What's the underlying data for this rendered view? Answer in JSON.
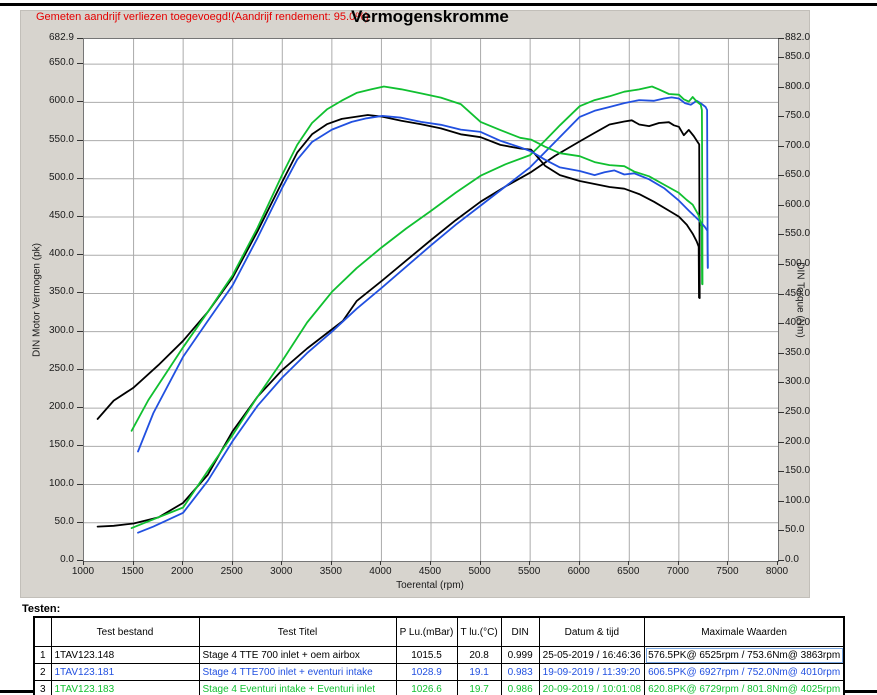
{
  "annotation": "Gemeten aandrijf verliezen toegevoegd!(Aandrijf rendement: 95.0%)",
  "title": "Vermogenskromme",
  "testen_label": "Testen:",
  "chart_data": {
    "type": "line",
    "title": "Vermogenskromme",
    "xlabel": "Toerental (rpm)",
    "ylabel_left": "DIN Motor Vermogen (pk)",
    "ylabel_right": "DIN Torque (Nm)",
    "x_range": [
      1000,
      8000
    ],
    "y_left_range": [
      0,
      682.9
    ],
    "y_right_range": [
      0,
      882.0
    ],
    "grid": true,
    "legend_position": "none",
    "x_tick_labels": [
      "1000",
      "1500",
      "2000",
      "2500",
      "3000",
      "3500",
      "4000",
      "4500",
      "5000",
      "5500",
      "6000",
      "6500",
      "7000",
      "7500",
      "8000"
    ],
    "y_left_tick_labels": [
      "682.9",
      "650.0",
      "600.0",
      "550.0",
      "500.0",
      "450.0",
      "400.0",
      "350.0",
      "300.0",
      "250.0",
      "200.0",
      "150.0",
      "100.0",
      "50.0",
      "0.0"
    ],
    "y_right_tick_labels": [
      "882.0",
      "850.0",
      "800.0",
      "750.0",
      "700.0",
      "650.0",
      "600.0",
      "550.0",
      "500.0",
      "450.0",
      "400.0",
      "350.0",
      "300.0",
      "250.0",
      "200.0",
      "150.0",
      "100.0",
      "50.0",
      "0.0"
    ],
    "series": [
      {
        "name": "1TAV123.148 vermogen (pk)",
        "color": "#000000",
        "axis": "left-pk",
        "points": [
          [
            1137,
            45
          ],
          [
            1300,
            46
          ],
          [
            1500,
            49
          ],
          [
            1750,
            57
          ],
          [
            2000,
            76
          ],
          [
            2250,
            113
          ],
          [
            2500,
            170
          ],
          [
            2750,
            215
          ],
          [
            3000,
            250
          ],
          [
            3250,
            278
          ],
          [
            3500,
            303
          ],
          [
            3610,
            314
          ],
          [
            3750,
            340
          ],
          [
            4000,
            366
          ],
          [
            4250,
            393
          ],
          [
            4500,
            420
          ],
          [
            4750,
            446
          ],
          [
            5000,
            470
          ],
          [
            5250,
            490
          ],
          [
            5500,
            508
          ],
          [
            5750,
            530
          ],
          [
            6000,
            549
          ],
          [
            6150,
            560
          ],
          [
            6300,
            571
          ],
          [
            6450,
            575
          ],
          [
            6525,
            576.5
          ],
          [
            6600,
            571
          ],
          [
            6700,
            569
          ],
          [
            6800,
            573
          ],
          [
            6900,
            574
          ],
          [
            6950,
            570
          ],
          [
            7000,
            568
          ],
          [
            7050,
            557
          ],
          [
            7100,
            564
          ],
          [
            7150,
            556
          ],
          [
            7190,
            548
          ],
          [
            7205,
            545
          ],
          [
            7208,
            430
          ],
          [
            7210,
            344
          ]
        ]
      },
      {
        "name": "1TAV123.181 vermogen (pk)",
        "color": "#2150e0",
        "axis": "left-pk",
        "points": [
          [
            1545,
            37
          ],
          [
            1700,
            45
          ],
          [
            2000,
            63
          ],
          [
            2250,
            105
          ],
          [
            2500,
            157
          ],
          [
            2750,
            203
          ],
          [
            3000,
            240
          ],
          [
            3250,
            272
          ],
          [
            3500,
            300
          ],
          [
            3750,
            330
          ],
          [
            4000,
            357
          ],
          [
            4250,
            385
          ],
          [
            4500,
            413
          ],
          [
            4750,
            440
          ],
          [
            5000,
            465
          ],
          [
            5250,
            490
          ],
          [
            5500,
            515
          ],
          [
            5750,
            548
          ],
          [
            6000,
            581
          ],
          [
            6150,
            589
          ],
          [
            6300,
            594
          ],
          [
            6450,
            599
          ],
          [
            6600,
            603
          ],
          [
            6750,
            602
          ],
          [
            6850,
            605
          ],
          [
            6927,
            606.5
          ],
          [
            7000,
            605
          ],
          [
            7060,
            599
          ],
          [
            7120,
            597
          ],
          [
            7180,
            602
          ],
          [
            7230,
            598
          ],
          [
            7270,
            594
          ],
          [
            7285,
            590
          ],
          [
            7288,
            480
          ],
          [
            7292,
            384
          ]
        ]
      },
      {
        "name": "1TAV123.183 vermogen (pk)",
        "color": "#10c030",
        "axis": "left-pk",
        "points": [
          [
            1480,
            43
          ],
          [
            1650,
            52
          ],
          [
            2000,
            70
          ],
          [
            2250,
            118
          ],
          [
            2500,
            165
          ],
          [
            2750,
            215
          ],
          [
            3000,
            262
          ],
          [
            3250,
            312
          ],
          [
            3500,
            352
          ],
          [
            3750,
            383
          ],
          [
            4000,
            410
          ],
          [
            4250,
            435
          ],
          [
            4500,
            458
          ],
          [
            4750,
            482
          ],
          [
            5000,
            504
          ],
          [
            5250,
            519
          ],
          [
            5500,
            531
          ],
          [
            5650,
            550
          ],
          [
            5800,
            570
          ],
          [
            6000,
            595
          ],
          [
            6150,
            603
          ],
          [
            6300,
            608
          ],
          [
            6450,
            614
          ],
          [
            6600,
            617
          ],
          [
            6729,
            620.8
          ],
          [
            6800,
            617
          ],
          [
            6900,
            611
          ],
          [
            7000,
            610
          ],
          [
            7050,
            604
          ],
          [
            7100,
            601
          ],
          [
            7140,
            607
          ],
          [
            7180,
            601
          ],
          [
            7220,
            597
          ],
          [
            7232,
            590
          ],
          [
            7236,
            470
          ],
          [
            7238,
            362
          ]
        ]
      },
      {
        "name": "1TAV123.148 koppel (Nm)",
        "color": "#000000",
        "axis": "right-nm",
        "points": [
          [
            1137,
            240
          ],
          [
            1300,
            271
          ],
          [
            1500,
            293
          ],
          [
            1750,
            331
          ],
          [
            2000,
            372
          ],
          [
            2250,
            421
          ],
          [
            2500,
            479
          ],
          [
            2750,
            557
          ],
          [
            3000,
            641
          ],
          [
            3150,
            690
          ],
          [
            3300,
            721
          ],
          [
            3450,
            738
          ],
          [
            3600,
            747
          ],
          [
            3863,
            753.6
          ],
          [
            4000,
            751
          ],
          [
            4200,
            744
          ],
          [
            4400,
            738
          ],
          [
            4600,
            731
          ],
          [
            4800,
            721
          ],
          [
            5000,
            716
          ],
          [
            5200,
            703
          ],
          [
            5400,
            697
          ],
          [
            5510,
            695
          ],
          [
            5650,
            668
          ],
          [
            5800,
            652
          ],
          [
            6000,
            642
          ],
          [
            6150,
            637
          ],
          [
            6300,
            632
          ],
          [
            6450,
            629
          ],
          [
            6600,
            620
          ],
          [
            6750,
            607
          ],
          [
            6900,
            592
          ],
          [
            7000,
            582
          ],
          [
            7080,
            568
          ],
          [
            7140,
            553
          ],
          [
            7180,
            540
          ],
          [
            7200,
            531
          ],
          [
            7203,
            445
          ]
        ]
      },
      {
        "name": "1TAV123.181 koppel (Nm)",
        "color": "#2150e0",
        "axis": "right-nm",
        "points": [
          [
            1545,
            185
          ],
          [
            1700,
            250
          ],
          [
            2000,
            345
          ],
          [
            2250,
            406
          ],
          [
            2500,
            466
          ],
          [
            2750,
            546
          ],
          [
            3000,
            631
          ],
          [
            3150,
            678
          ],
          [
            3300,
            708
          ],
          [
            3500,
            729
          ],
          [
            3700,
            742
          ],
          [
            3850,
            748
          ],
          [
            4010,
            752
          ],
          [
            4200,
            749
          ],
          [
            4400,
            742
          ],
          [
            4600,
            737
          ],
          [
            4800,
            729
          ],
          [
            5000,
            725
          ],
          [
            5200,
            710
          ],
          [
            5400,
            699
          ],
          [
            5510,
            692
          ],
          [
            5650,
            678
          ],
          [
            5800,
            665
          ],
          [
            6000,
            659
          ],
          [
            6150,
            652
          ],
          [
            6250,
            657
          ],
          [
            6350,
            660
          ],
          [
            6450,
            653
          ],
          [
            6550,
            655
          ],
          [
            6700,
            645
          ],
          [
            6850,
            630
          ],
          [
            7000,
            609
          ],
          [
            7100,
            592
          ],
          [
            7200,
            576
          ],
          [
            7260,
            565
          ],
          [
            7288,
            558
          ],
          [
            7292,
            495
          ]
        ]
      },
      {
        "name": "1TAV123.183 koppel (Nm)",
        "color": "#10c030",
        "axis": "right-nm",
        "points": [
          [
            1480,
            220
          ],
          [
            1650,
            272
          ],
          [
            2000,
            361
          ],
          [
            2250,
            421
          ],
          [
            2500,
            483
          ],
          [
            2750,
            563
          ],
          [
            3000,
            653
          ],
          [
            3150,
            703
          ],
          [
            3300,
            740
          ],
          [
            3450,
            763
          ],
          [
            3600,
            778
          ],
          [
            3750,
            791
          ],
          [
            3900,
            797
          ],
          [
            4025,
            801.8
          ],
          [
            4200,
            797
          ],
          [
            4400,
            790
          ],
          [
            4600,
            783
          ],
          [
            4800,
            772
          ],
          [
            5000,
            742
          ],
          [
            5200,
            728
          ],
          [
            5400,
            715
          ],
          [
            5510,
            712
          ],
          [
            5650,
            700
          ],
          [
            5800,
            689
          ],
          [
            6000,
            684
          ],
          [
            6150,
            674
          ],
          [
            6300,
            669
          ],
          [
            6450,
            667
          ],
          [
            6550,
            658
          ],
          [
            6700,
            650
          ],
          [
            6850,
            636
          ],
          [
            7000,
            622
          ],
          [
            7080,
            610
          ],
          [
            7140,
            602
          ],
          [
            7200,
            584
          ],
          [
            7230,
            565
          ],
          [
            7234,
            468
          ]
        ]
      }
    ]
  },
  "table": {
    "columns": [
      "",
      "Test bestand",
      "Test Titel",
      "P Lu.(mBar)",
      "T lu.(°C)",
      "DIN",
      "Datum & tijd",
      "Maximale Waarden"
    ],
    "rows": [
      {
        "index": "1",
        "color": "#000000",
        "cells": [
          "1TAV123.148",
          "Stage 4 TTE 700  inlet + oem airbox",
          "1015.5",
          "20.8",
          "0.999",
          "25-05-2019 / 16:46:36",
          "576.5PK@ 6525rpm / 753.6Nm@ 3863rpm"
        ]
      },
      {
        "index": "2",
        "color": "#2150e0",
        "cells": [
          "1TAV123.181",
          "Stage 4 TTE700 inlet + eventuri intake",
          "1028.9",
          "19.1",
          "0.983",
          "19-09-2019 / 11:39:20",
          "606.5PK@ 6927rpm / 752.0Nm@ 4010rpm"
        ]
      },
      {
        "index": "3",
        "color": "#10c030",
        "cells": [
          "1TAV123.183",
          "Stage 4 Eventuri intake + Eventuri inlet",
          "1026.6",
          "19.7",
          "0.986",
          "20-09-2019 / 10:01:08",
          "620.8PK@ 6729rpm / 801.8Nm@ 4025rpm"
        ]
      }
    ],
    "focus_cell": {
      "row": 0,
      "col": 6
    }
  },
  "colors": {
    "annotation_red": "#e50000",
    "panel_gray": "#d7d4ce",
    "gridline": "#ababab",
    "curve_black": "#000000",
    "curve_blue": "#2150e0",
    "curve_green": "#10c030"
  }
}
